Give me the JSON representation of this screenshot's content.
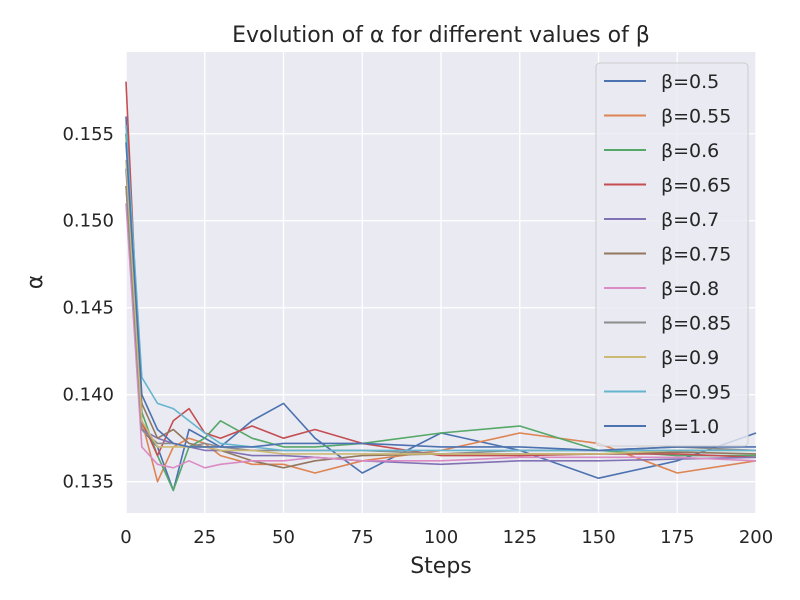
{
  "chart_data": {
    "type": "line",
    "title": "Evolution of α for different values of β",
    "xlabel": "Steps",
    "ylabel": "α",
    "xlim": [
      0,
      200
    ],
    "ylim": [
      0.1332,
      0.1597
    ],
    "xticks": [
      0,
      25,
      50,
      75,
      100,
      125,
      150,
      175,
      200
    ],
    "xtick_labels": [
      "0",
      "25",
      "50",
      "75",
      "100",
      "125",
      "150",
      "175",
      "200"
    ],
    "yticks": [
      0.135,
      0.14,
      0.145,
      0.15,
      0.155
    ],
    "ytick_labels": [
      "0.135",
      "0.140",
      "0.145",
      "0.150",
      "0.155"
    ],
    "grid": true,
    "legend_position": "top-right",
    "x": [
      0,
      5,
      10,
      15,
      20,
      25,
      30,
      40,
      50,
      60,
      75,
      100,
      125,
      150,
      175,
      200
    ],
    "series": [
      {
        "name": "β=0.5",
        "color": "#4c72b0",
        "values": [
          0.156,
          0.138,
          0.137,
          0.1345,
          0.138,
          0.1375,
          0.137,
          0.1385,
          0.1395,
          0.1375,
          0.1355,
          0.1378,
          0.1368,
          0.1352,
          0.1362,
          0.1378
        ]
      },
      {
        "name": "β=0.55",
        "color": "#dd8452",
        "values": [
          0.155,
          0.1385,
          0.135,
          0.137,
          0.1375,
          0.1372,
          0.1365,
          0.136,
          0.136,
          0.1355,
          0.1362,
          0.1368,
          0.1378,
          0.1372,
          0.1355,
          0.1362
        ]
      },
      {
        "name": "β=0.6",
        "color": "#55a868",
        "values": [
          0.155,
          0.139,
          0.1365,
          0.1345,
          0.137,
          0.1375,
          0.1385,
          0.1375,
          0.137,
          0.137,
          0.1372,
          0.1378,
          0.1382,
          0.1368,
          0.1365,
          0.1365
        ]
      },
      {
        "name": "β=0.65",
        "color": "#c44e52",
        "values": [
          0.158,
          0.1385,
          0.1365,
          0.1385,
          0.1392,
          0.1378,
          0.1375,
          0.1382,
          0.1375,
          0.138,
          0.1372,
          0.1365,
          0.1365,
          0.1366,
          0.1366,
          0.1364
        ]
      },
      {
        "name": "β=0.7",
        "color": "#8172b3",
        "values": [
          0.153,
          0.138,
          0.1375,
          0.1372,
          0.137,
          0.1368,
          0.1368,
          0.1365,
          0.1365,
          0.1364,
          0.1362,
          0.136,
          0.1362,
          0.1362,
          0.1363,
          0.1364
        ]
      },
      {
        "name": "β=0.75",
        "color": "#937860",
        "values": [
          0.152,
          0.1395,
          0.1375,
          0.138,
          0.1372,
          0.137,
          0.1368,
          0.1362,
          0.1358,
          0.1362,
          0.1365,
          0.1366,
          0.1366,
          0.1366,
          0.1367,
          0.1366
        ]
      },
      {
        "name": "β=0.8",
        "color": "#da8bc3",
        "values": [
          0.151,
          0.137,
          0.136,
          0.1358,
          0.1362,
          0.1358,
          0.136,
          0.1362,
          0.1362,
          0.1364,
          0.1362,
          0.1362,
          0.1364,
          0.1364,
          0.1364,
          0.1362
        ]
      },
      {
        "name": "β=0.85",
        "color": "#8c8c8c",
        "values": [
          0.152,
          0.138,
          0.1372,
          0.1372,
          0.137,
          0.1372,
          0.137,
          0.1368,
          0.1368,
          0.1368,
          0.1368,
          0.1366,
          0.1368,
          0.1368,
          0.137,
          0.1368
        ]
      },
      {
        "name": "β=0.9",
        "color": "#ccb974",
        "values": [
          0.1535,
          0.1385,
          0.137,
          0.137,
          0.137,
          0.137,
          0.1368,
          0.1368,
          0.1366,
          0.1366,
          0.1366,
          0.1366,
          0.1366,
          0.1366,
          0.1368,
          0.1368
        ]
      },
      {
        "name": "β=0.95",
        "color": "#64b5cd",
        "values": [
          0.1555,
          0.141,
          0.1395,
          0.1392,
          0.1385,
          0.1378,
          0.1372,
          0.137,
          0.1368,
          0.1368,
          0.1368,
          0.1368,
          0.1368,
          0.1368,
          0.1368,
          0.1368
        ]
      },
      {
        "name": "β=1.0",
        "color": "#4c72b0",
        "values": [
          0.1545,
          0.14,
          0.138,
          0.1372,
          0.137,
          0.137,
          0.137,
          0.137,
          0.1372,
          0.1372,
          0.1372,
          0.137,
          0.137,
          0.1368,
          0.137,
          0.137
        ]
      }
    ]
  }
}
